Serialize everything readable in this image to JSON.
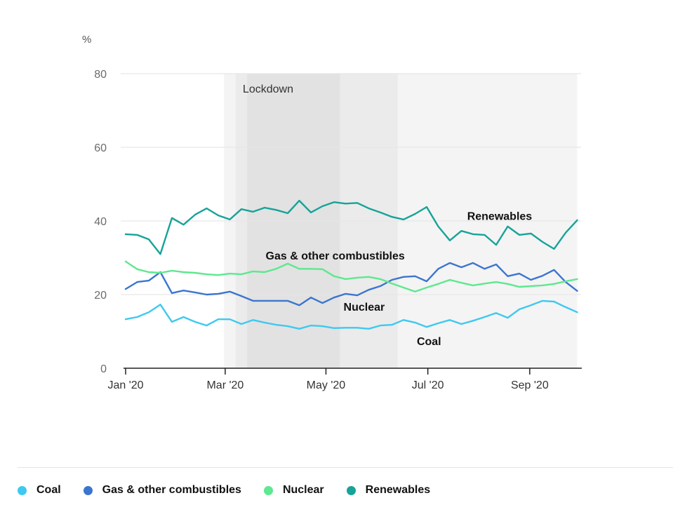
{
  "chart_data": {
    "type": "line",
    "title": "",
    "ylabel": "%",
    "xlabel": "",
    "ylim": [
      0,
      80
    ],
    "yticks": [
      0,
      20,
      40,
      60,
      80
    ],
    "x_unit": "weeks since 1 Jan 2020",
    "xlim": [
      0,
      39
    ],
    "xticks": [
      {
        "value": 0,
        "label": "Jan '20"
      },
      {
        "value": 8.6,
        "label": "Mar '20"
      },
      {
        "value": 17.3,
        "label": "May '20"
      },
      {
        "value": 26.1,
        "label": "Jul '20"
      },
      {
        "value": 34.9,
        "label": "Sep '20"
      }
    ],
    "grid": true,
    "bands": [
      {
        "from": 8.5,
        "to": 39,
        "color": "#f4f4f4"
      },
      {
        "from": 9.5,
        "to": 23.5,
        "color": "#ebebeb"
      },
      {
        "from": 10.5,
        "to": 18.5,
        "color": "#e2e2e2"
      }
    ],
    "band_label": {
      "text": "Lockdown",
      "x": 12.3,
      "y": 76
    },
    "x": [
      0,
      1,
      2,
      3,
      4,
      5,
      6,
      7,
      8,
      9,
      10,
      11,
      12,
      13,
      14,
      15,
      16,
      17,
      18,
      19,
      20,
      21,
      22,
      23,
      24,
      25,
      26,
      27,
      28,
      29,
      30,
      31,
      32,
      33,
      34,
      35,
      36,
      37,
      38,
      39
    ],
    "series": [
      {
        "name": "Coal",
        "color": "#3ec9f0",
        "label_pos": {
          "x": 26.2,
          "y": 7.2
        },
        "values": [
          13.3,
          13.9,
          15.2,
          17.3,
          12.6,
          13.9,
          12.6,
          11.6,
          13.3,
          13.3,
          12.0,
          13.1,
          12.4,
          11.8,
          11.4,
          10.7,
          11.6,
          11.4,
          10.9,
          11.0,
          11.0,
          10.7,
          11.6,
          11.8,
          13.1,
          12.4,
          11.2,
          12.2,
          13.1,
          12.0,
          12.9,
          13.9,
          15.0,
          13.7,
          16.0,
          17.1,
          18.3,
          18.1,
          16.6,
          15.2
        ]
      },
      {
        "name": "Gas & other combustibles",
        "color": "#3b75cf",
        "label_pos": {
          "x": 18.1,
          "y": 30.5
        },
        "values": [
          21.5,
          23.4,
          23.8,
          26.1,
          20.4,
          21.1,
          20.6,
          20.0,
          20.2,
          20.8,
          19.6,
          18.3,
          18.3,
          18.3,
          18.3,
          17.1,
          19.2,
          17.7,
          19.2,
          20.2,
          19.8,
          21.3,
          22.3,
          24.0,
          24.8,
          25.0,
          23.6,
          27.0,
          28.6,
          27.4,
          28.6,
          27.0,
          28.2,
          25.0,
          25.7,
          24.0,
          25.1,
          26.7,
          23.4,
          21.0
        ]
      },
      {
        "name": "Nuclear",
        "color": "#5ee88f",
        "label_pos": {
          "x": 20.6,
          "y": 16.6
        },
        "values": [
          29.0,
          26.9,
          26.1,
          25.9,
          26.5,
          26.1,
          25.9,
          25.5,
          25.3,
          25.7,
          25.5,
          26.3,
          26.1,
          27.0,
          28.4,
          27.0,
          27.0,
          26.9,
          25.0,
          24.2,
          24.6,
          24.8,
          24.2,
          23.0,
          21.9,
          20.8,
          21.9,
          22.9,
          24.0,
          23.2,
          22.5,
          23.0,
          23.4,
          22.9,
          22.1,
          22.3,
          22.5,
          22.9,
          23.6,
          24.2
        ]
      },
      {
        "name": "Renewables",
        "color": "#17a398",
        "label_pos": {
          "x": 32.3,
          "y": 41.2
        },
        "values": [
          36.4,
          36.2,
          35.0,
          31.0,
          40.8,
          39.0,
          41.7,
          43.4,
          41.5,
          40.4,
          43.2,
          42.5,
          43.6,
          43.0,
          42.1,
          45.5,
          42.3,
          44.0,
          45.1,
          44.7,
          44.9,
          43.4,
          42.3,
          41.1,
          40.4,
          41.9,
          43.8,
          38.5,
          34.7,
          37.3,
          36.4,
          36.2,
          33.5,
          38.5,
          36.2,
          36.6,
          34.3,
          32.4,
          36.8,
          40.2
        ]
      }
    ]
  },
  "legend": {
    "items": [
      {
        "label": "Coal",
        "color": "#3ec9f0"
      },
      {
        "label": "Gas & other combustibles",
        "color": "#3b75cf"
      },
      {
        "label": "Nuclear",
        "color": "#5ee88f"
      },
      {
        "label": "Renewables",
        "color": "#17a398"
      }
    ]
  }
}
